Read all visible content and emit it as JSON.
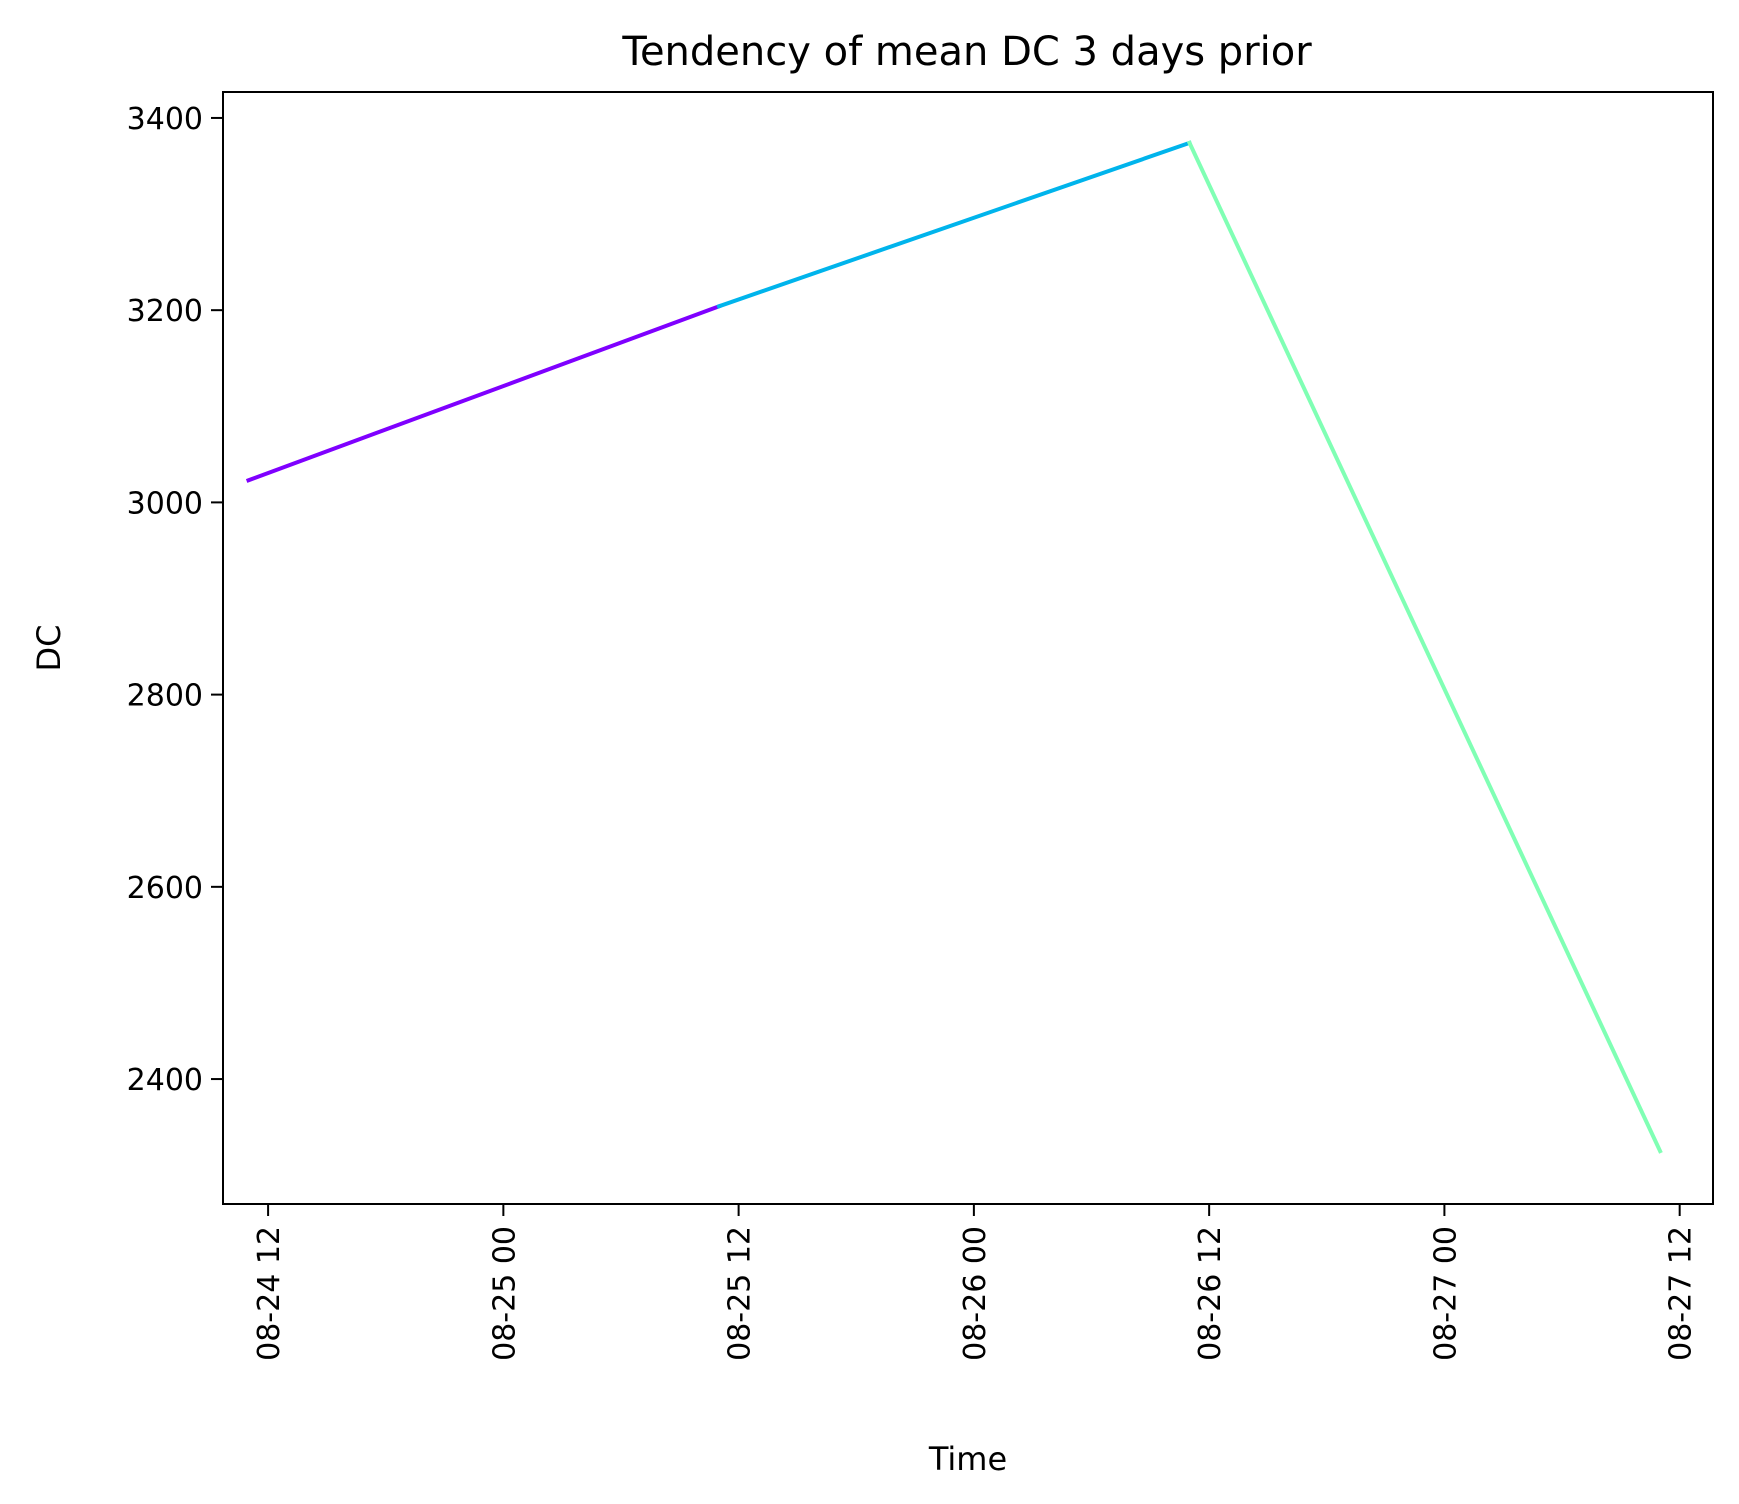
{
  "chart_data": {
    "type": "line",
    "title": "Tendency of mean DC 3 days prior",
    "xlabel": "Time",
    "ylabel": "DC",
    "x_ticks": [
      "08-24 12",
      "08-25 00",
      "08-25 12",
      "08-26 00",
      "08-26 12",
      "08-27 00",
      "08-27 12"
    ],
    "x_tick_values": [
      "2023-08-24 12:00",
      "2023-08-25 00:00",
      "2023-08-25 12:00",
      "2023-08-26 00:00",
      "2023-08-26 12:00",
      "2023-08-27 00:00",
      "2023-08-27 12:00"
    ],
    "xlim": [
      "2023-08-24 09:42",
      "2023-08-27 13:42"
    ],
    "y_ticks": [
      2400,
      2600,
      2800,
      3000,
      3200,
      3400
    ],
    "ylim": [
      2270,
      3427
    ],
    "grid": false,
    "segments": [
      {
        "color": "#7f00ff",
        "points": [
          [
            "2023-08-24 11:00",
            3023
          ],
          [
            "2023-08-25 11:00",
            3204
          ]
        ]
      },
      {
        "color": "#00b4ec",
        "points": [
          [
            "2023-08-25 11:00",
            3204
          ],
          [
            "2023-08-26 11:00",
            3374
          ]
        ]
      },
      {
        "color": "#80ffb4",
        "points": [
          [
            "2023-08-26 11:00",
            3374
          ],
          [
            "2023-08-27 11:00",
            2325
          ]
        ]
      }
    ]
  }
}
